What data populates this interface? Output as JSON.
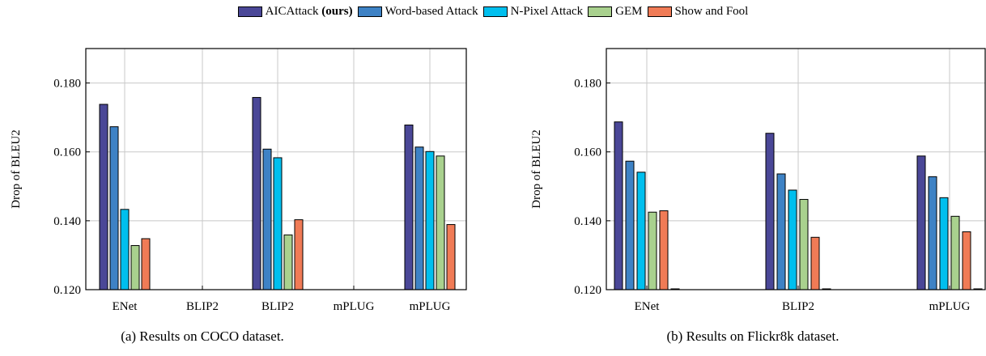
{
  "legend": [
    {
      "label": "AICAttack",
      "suffix": "(ours)",
      "color": "#4a4797"
    },
    {
      "label": "Word-based Attack",
      "suffix": "",
      "color": "#3e82c5"
    },
    {
      "label": "N-Pixel Attack",
      "suffix": "",
      "color": "#00bfee"
    },
    {
      "label": "GEM",
      "suffix": "",
      "color": "#a9d18e"
    },
    {
      "label": "Show and Fool",
      "suffix": "",
      "color": "#f07b56"
    }
  ],
  "chart_data": [
    {
      "type": "bar",
      "ylabel": "Drop of BLEU2",
      "xlabel": "",
      "ylim": [
        0.12,
        0.19
      ],
      "yticks": [
        "0.120",
        "0.140",
        "0.160",
        "0.180"
      ],
      "grid": true,
      "categories": [
        "ENet",
        "BLIP2",
        "BLIP2",
        "mPLUG",
        "mPLUG"
      ],
      "series": [
        {
          "name": "AICAttack (ours)",
          "values": [
            0.1738,
            null,
            0.1758,
            null,
            0.1678
          ]
        },
        {
          "name": "Word-based Attack",
          "values": [
            0.1673,
            null,
            0.1608,
            null,
            0.1614
          ]
        },
        {
          "name": "N-Pixel Attack",
          "values": [
            0.1433,
            null,
            0.1583,
            null,
            0.1601
          ]
        },
        {
          "name": "GEM",
          "values": [
            0.1328,
            null,
            0.1359,
            null,
            0.1588
          ]
        },
        {
          "name": "Show and Fool",
          "values": [
            0.1348,
            null,
            0.1403,
            null,
            0.1389
          ]
        }
      ],
      "caption": "(a) Results on COCO dataset."
    },
    {
      "type": "bar",
      "ylabel": "Drop of BLEU2",
      "xlabel": "",
      "ylim": [
        0.12,
        0.19
      ],
      "yticks": [
        "0.120",
        "0.140",
        "0.160",
        "0.180"
      ],
      "grid": true,
      "categories": [
        "ENet",
        "BLIP2",
        "mPLUG"
      ],
      "series": [
        {
          "name": "AICAttack (ours)",
          "values": [
            0.1687,
            0.1654,
            0.1588
          ]
        },
        {
          "name": "Word-based Attack",
          "values": [
            0.1573,
            0.1536,
            0.1528
          ]
        },
        {
          "name": "N-Pixel Attack",
          "values": [
            0.1541,
            0.1489,
            0.1467
          ]
        },
        {
          "name": "GEM",
          "values": [
            0.1425,
            0.1462,
            0.1413
          ]
        },
        {
          "name": "Show and Fool",
          "values": [
            0.1429,
            0.1352,
            0.1368
          ]
        },
        {
          "name": "",
          "values": [
            0.1201,
            0.1201,
            0.1201
          ]
        }
      ],
      "caption": "(b) Results on Flickr8k dataset."
    }
  ]
}
